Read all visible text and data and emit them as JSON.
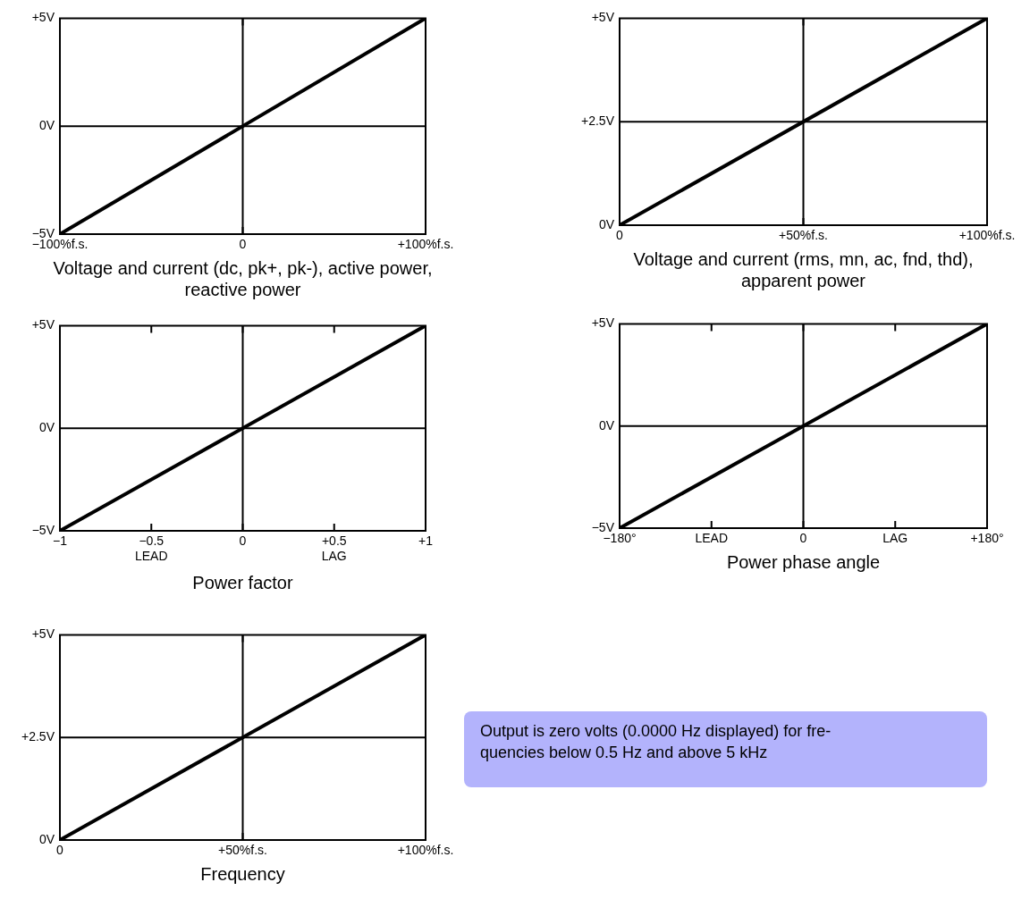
{
  "chart_data": [
    {
      "type": "line",
      "xlabel": "Voltage and current (dc, pk+, pk-), active power, reactive power",
      "x": [
        -100,
        100
      ],
      "marker": "none",
      "series": [
        {
          "color": "#000000",
          "values": [
            -5,
            5
          ]
        }
      ],
      "xlim": [
        -100,
        100
      ],
      "ylim": [
        -5,
        5
      ],
      "xticks": [
        {
          "value": -100,
          "label": "−100%f.s."
        },
        {
          "value": 0,
          "label": "0"
        },
        {
          "value": 100,
          "label": "+100%f.s."
        }
      ],
      "yticks": [
        {
          "value": -5,
          "label": "−5V"
        },
        {
          "value": 0,
          "label": "0V"
        },
        {
          "value": 5,
          "label": "+5V"
        }
      ],
      "ref_lines": [
        {
          "axis": "x",
          "value": 0
        },
        {
          "axis": "y",
          "value": 0
        }
      ]
    },
    {
      "type": "line",
      "xlabel": "Voltage and current (rms, mn, ac, fnd, thd), apparent power",
      "x": [
        0,
        100
      ],
      "marker": "none",
      "series": [
        {
          "color": "#000000",
          "values": [
            0,
            5
          ]
        }
      ],
      "xlim": [
        0,
        100
      ],
      "ylim": [
        0,
        5
      ],
      "xticks": [
        {
          "value": 0,
          "label": "0"
        },
        {
          "value": 50,
          "label": "+50%f.s."
        },
        {
          "value": 100,
          "label": "+100%f.s."
        }
      ],
      "yticks": [
        {
          "value": 0,
          "label": "0V"
        },
        {
          "value": 2.5,
          "label": "+2.5V"
        },
        {
          "value": 5,
          "label": "+5V"
        }
      ],
      "ref_lines": [
        {
          "axis": "x",
          "value": 50
        },
        {
          "axis": "y",
          "value": 2.5
        }
      ]
    },
    {
      "type": "line",
      "xlabel": "Power factor",
      "x": [
        -1,
        1
      ],
      "marker": "none",
      "series": [
        {
          "color": "#000000",
          "values": [
            -5,
            5
          ]
        }
      ],
      "xlim": [
        -1,
        1
      ],
      "ylim": [
        -5,
        5
      ],
      "xticks": [
        {
          "value": -1,
          "label": "−1"
        },
        {
          "value": -0.5,
          "label": "−0.5\nLEAD"
        },
        {
          "value": 0,
          "label": "0"
        },
        {
          "value": 0.5,
          "label": "+0.5\nLAG"
        },
        {
          "value": 1,
          "label": "+1"
        }
      ],
      "yticks": [
        {
          "value": -5,
          "label": "−5V"
        },
        {
          "value": 0,
          "label": "0V"
        },
        {
          "value": 5,
          "label": "+5V"
        }
      ],
      "ref_lines": [
        {
          "axis": "x",
          "value": 0
        },
        {
          "axis": "y",
          "value": 0
        }
      ]
    },
    {
      "type": "line",
      "xlabel": "Power phase angle",
      "x": [
        -180,
        180
      ],
      "marker": "none",
      "series": [
        {
          "color": "#000000",
          "values": [
            -5,
            5
          ]
        }
      ],
      "xlim": [
        -180,
        180
      ],
      "ylim": [
        -5,
        5
      ],
      "xticks": [
        {
          "value": -180,
          "label": "−180°"
        },
        {
          "value": -90,
          "label": "LEAD"
        },
        {
          "value": 0,
          "label": "0"
        },
        {
          "value": 90,
          "label": "LAG"
        },
        {
          "value": 180,
          "label": "+180°"
        }
      ],
      "yticks": [
        {
          "value": -5,
          "label": "−5V"
        },
        {
          "value": 0,
          "label": "0V"
        },
        {
          "value": 5,
          "label": "+5V"
        }
      ],
      "ref_lines": [
        {
          "axis": "x",
          "value": 0
        },
        {
          "axis": "y",
          "value": 0
        }
      ]
    },
    {
      "type": "line",
      "xlabel": "Frequency",
      "x": [
        0,
        100
      ],
      "marker": "none",
      "series": [
        {
          "color": "#000000",
          "values": [
            0,
            5
          ]
        }
      ],
      "xlim": [
        0,
        100
      ],
      "ylim": [
        0,
        5
      ],
      "xticks": [
        {
          "value": 0,
          "label": "0"
        },
        {
          "value": 50,
          "label": "+50%f.s."
        },
        {
          "value": 100,
          "label": "+100%f.s."
        }
      ],
      "yticks": [
        {
          "value": 0,
          "label": "0V"
        },
        {
          "value": 2.5,
          "label": "+2.5V"
        },
        {
          "value": 5,
          "label": "+5V"
        }
      ],
      "ref_lines": [
        {
          "axis": "x",
          "value": 50
        },
        {
          "axis": "y",
          "value": 2.5
        }
      ]
    },
    {
      "type": "other",
      "annotations": [
        "Output is zero volts (0.0000 Hz displayed) for fre-\nquencies below 0.5 Hz and above 5 kHz"
      ]
    }
  ]
}
